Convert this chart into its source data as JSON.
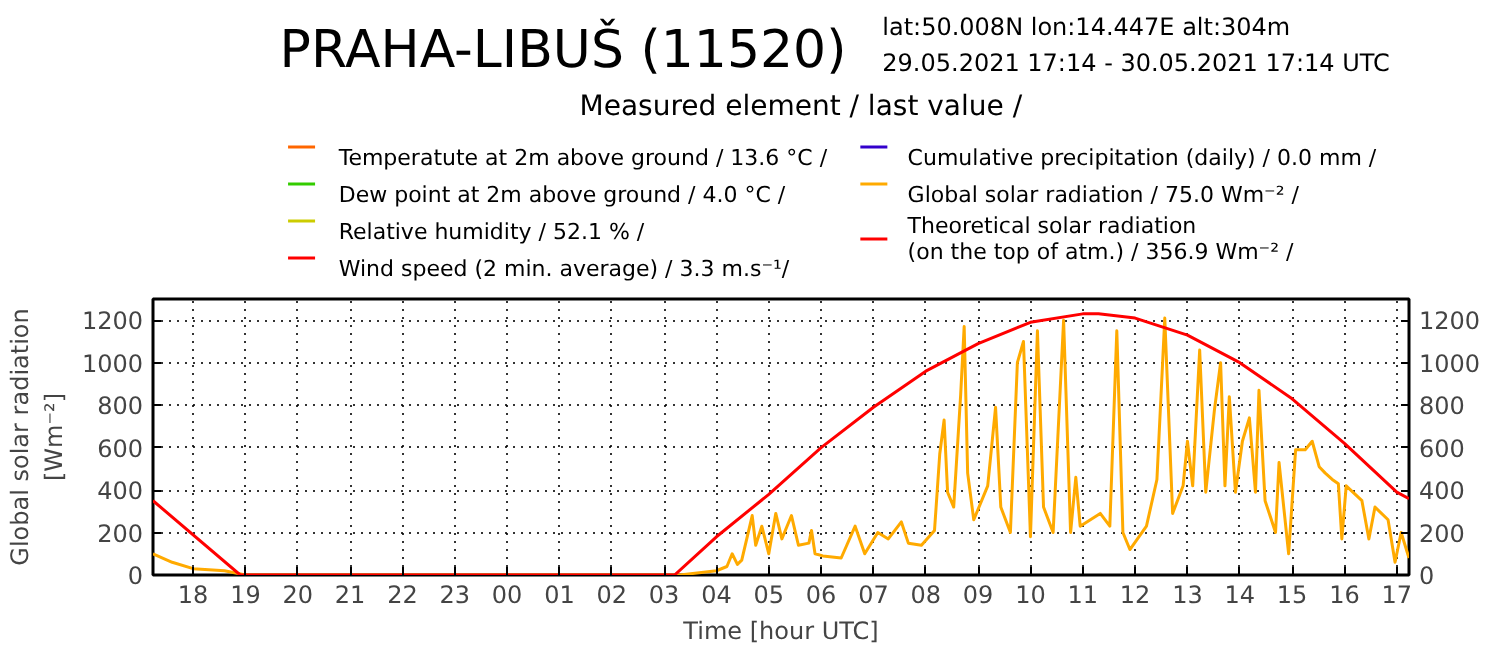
{
  "chart_data": {
    "type": "line",
    "title": "PRAHA-LIBUŠ (11520)",
    "subtitle": "lat:50.008N   lon:14.447E   alt:304m\n29.05.2021 17:14 - 30.05.2021 17:14 UTC",
    "legend_title": "Measured element   / last value /",
    "xlabel": "Time [hour UTC]",
    "ylabel": "Global solar radiation [Wm⁻²]",
    "xlim": [
      "2021-05-29T17:14",
      "2021-05-30T17:14"
    ],
    "ylim": [
      0,
      1300
    ],
    "y2lim": [
      0,
      1300
    ],
    "xticks": [
      {
        "value": "2021-05-29T18:00",
        "label": "18"
      },
      {
        "value": "2021-05-29T19:00",
        "label": "19"
      },
      {
        "value": "2021-05-29T20:00",
        "label": "20"
      },
      {
        "value": "2021-05-29T21:00",
        "label": "21"
      },
      {
        "value": "2021-05-29T22:00",
        "label": "22"
      },
      {
        "value": "2021-05-29T23:00",
        "label": "23"
      },
      {
        "value": "2021-05-30T00:00",
        "label": "00"
      },
      {
        "value": "2021-05-30T01:00",
        "label": "01"
      },
      {
        "value": "2021-05-30T02:00",
        "label": "02"
      },
      {
        "value": "2021-05-30T03:00",
        "label": "03"
      },
      {
        "value": "2021-05-30T04:00",
        "label": "04"
      },
      {
        "value": "2021-05-30T05:00",
        "label": "05"
      },
      {
        "value": "2021-05-30T06:00",
        "label": "06"
      },
      {
        "value": "2021-05-30T07:00",
        "label": "07"
      },
      {
        "value": "2021-05-30T08:00",
        "label": "08"
      },
      {
        "value": "2021-05-30T09:00",
        "label": "09"
      },
      {
        "value": "2021-05-30T10:00",
        "label": "10"
      },
      {
        "value": "2021-05-30T11:00",
        "label": "11"
      },
      {
        "value": "2021-05-30T12:00",
        "label": "12"
      },
      {
        "value": "2021-05-30T13:00",
        "label": "13"
      },
      {
        "value": "2021-05-30T14:00",
        "label": "14"
      },
      {
        "value": "2021-05-30T15:00",
        "label": "15"
      },
      {
        "value": "2021-05-30T16:00",
        "label": "16"
      },
      {
        "value": "2021-05-30T17:00",
        "label": "17"
      }
    ],
    "yticks": [
      0,
      200,
      400,
      600,
      800,
      1000,
      1200
    ],
    "y2ticks": [
      0,
      200,
      400,
      600,
      800,
      1000,
      1200
    ],
    "grid": true,
    "legend": "top",
    "line_style": "solid",
    "series": [
      {
        "name": "Temperatute at 2m above ground   / 13.6 °C /",
        "color": "#ff6600"
      },
      {
        "name": "Dew point at 2m above ground   / 4.0 °C /",
        "color": "#33cc00"
      },
      {
        "name": "Relative humidity   / 52.1 % /",
        "color": "#cccc00"
      },
      {
        "name": "Wind speed (2 min. average)   / 3.3 m.s⁻¹/",
        "color": "#ff0000"
      },
      {
        "name": "Cumulative precipitation (daily)   / 0.0 mm /",
        "color": "#3300cc"
      },
      {
        "name": "Global solar radiation   / 75.0 Wm⁻² /",
        "color": "#ffaa00",
        "x": [
          "2021-05-29T17:14",
          "2021-05-29T17:36",
          "2021-05-29T18:00",
          "2021-05-29T18:36",
          "2021-05-29T19:00",
          "2021-05-30T03:18",
          "2021-05-30T04:00",
          "2021-05-30T04:12",
          "2021-05-30T04:18",
          "2021-05-30T04:24",
          "2021-05-30T04:29",
          "2021-05-30T04:41",
          "2021-05-30T04:45",
          "2021-05-30T04:52",
          "2021-05-30T05:00",
          "2021-05-30T05:08",
          "2021-05-30T05:15",
          "2021-05-30T05:26",
          "2021-05-30T05:34",
          "2021-05-30T05:46",
          "2021-05-30T05:49",
          "2021-05-30T05:53",
          "2021-05-30T06:02",
          "2021-05-30T06:23",
          "2021-05-30T06:39",
          "2021-05-30T06:50",
          "2021-05-30T07:05",
          "2021-05-30T07:17",
          "2021-05-30T07:32",
          "2021-05-30T07:40",
          "2021-05-30T07:55",
          "2021-05-30T08:10",
          "2021-05-30T08:16",
          "2021-05-30T08:21",
          "2021-05-30T08:25",
          "2021-05-30T08:32",
          "2021-05-30T08:40",
          "2021-05-30T08:44",
          "2021-05-30T08:48",
          "2021-05-30T08:55",
          "2021-05-30T09:11",
          "2021-05-30T09:20",
          "2021-05-30T09:26",
          "2021-05-30T09:37",
          "2021-05-30T09:45",
          "2021-05-30T09:52",
          "2021-05-30T10:00",
          "2021-05-30T10:08",
          "2021-05-30T10:15",
          "2021-05-30T10:26",
          "2021-05-30T10:38",
          "2021-05-30T10:46",
          "2021-05-30T10:52",
          "2021-05-30T10:57",
          "2021-05-30T11:20",
          "2021-05-30T11:31",
          "2021-05-30T11:39",
          "2021-05-30T11:46",
          "2021-05-30T11:54",
          "2021-05-30T12:13",
          "2021-05-30T12:25",
          "2021-05-30T12:34",
          "2021-05-30T12:43",
          "2021-05-30T12:55",
          "2021-05-30T13:00",
          "2021-05-30T13:06",
          "2021-05-30T13:14",
          "2021-05-30T13:21",
          "2021-05-30T13:31",
          "2021-05-30T13:38",
          "2021-05-30T13:43",
          "2021-05-30T13:48",
          "2021-05-30T13:55",
          "2021-05-30T14:03",
          "2021-05-30T14:11",
          "2021-05-30T14:18",
          "2021-05-30T14:22",
          "2021-05-30T14:29",
          "2021-05-30T14:41",
          "2021-05-30T14:45",
          "2021-05-30T14:56",
          "2021-05-30T15:04",
          "2021-05-30T15:15",
          "2021-05-30T15:23",
          "2021-05-30T15:31",
          "2021-05-30T15:38",
          "2021-05-30T15:46",
          "2021-05-30T15:53",
          "2021-05-30T15:57",
          "2021-05-30T16:02",
          "2021-05-30T16:20",
          "2021-05-30T16:28",
          "2021-05-30T16:35",
          "2021-05-30T16:50",
          "2021-05-30T16:58",
          "2021-05-30T17:05",
          "2021-05-30T17:14"
        ],
        "values": [
          100,
          60,
          30,
          20,
          0,
          0,
          20,
          40,
          100,
          50,
          70,
          280,
          140,
          230,
          100,
          290,
          170,
          280,
          140,
          150,
          210,
          100,
          90,
          80,
          230,
          100,
          200,
          170,
          250,
          150,
          140,
          210,
          570,
          730,
          390,
          320,
          850,
          1170,
          480,
          260,
          420,
          790,
          320,
          200,
          1000,
          1100,
          180,
          1150,
          320,
          200,
          1200,
          200,
          460,
          230,
          290,
          230,
          1150,
          200,
          120,
          230,
          450,
          1210,
          290,
          420,
          630,
          420,
          1060,
          390,
          780,
          1000,
          420,
          840,
          390,
          630,
          740,
          390,
          870,
          350,
          200,
          530,
          100,
          590,
          590,
          630,
          510,
          480,
          450,
          430,
          170,
          420,
          350,
          170,
          320,
          260,
          60,
          200,
          80
        ]
      },
      {
        "name": "Theoretical solar radiation\n   (on the top of atm.)   / 356.9 Wm⁻² /",
        "color": "#ff0000",
        "x": [
          "2021-05-29T17:14",
          "2021-05-29T18:54",
          "2021-05-30T03:12",
          "2021-05-30T04:00",
          "2021-05-30T05:00",
          "2021-05-30T06:00",
          "2021-05-30T07:00",
          "2021-05-30T08:00",
          "2021-05-30T09:00",
          "2021-05-30T10:00",
          "2021-05-30T11:00",
          "2021-05-30T11:18",
          "2021-05-30T12:00",
          "2021-05-30T13:00",
          "2021-05-30T14:00",
          "2021-05-30T15:00",
          "2021-05-30T16:00",
          "2021-05-30T17:00",
          "2021-05-30T17:14"
        ],
        "values": [
          350,
          0,
          0,
          180,
          380,
          600,
          790,
          960,
          1090,
          1190,
          1230,
          1230,
          1210,
          1130,
          1000,
          830,
          620,
          390,
          360
        ]
      }
    ]
  }
}
